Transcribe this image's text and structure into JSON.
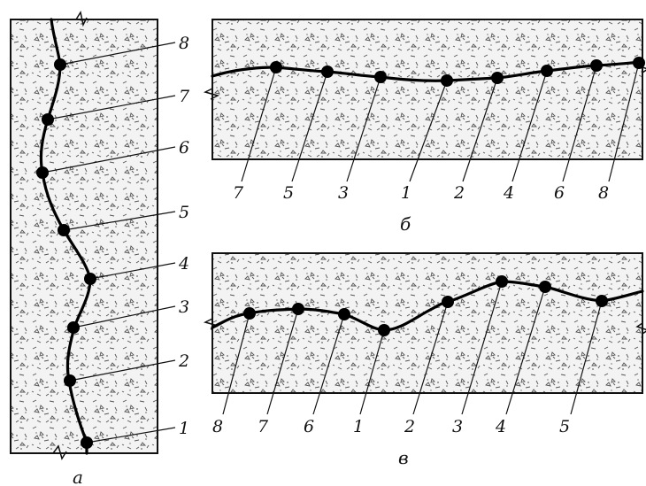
{
  "panels": [
    {
      "caption": "а",
      "points": [
        "1",
        "2",
        "3",
        "4",
        "5",
        "6",
        "7",
        "8"
      ]
    },
    {
      "caption": "б",
      "points": [
        "7",
        "5",
        "3",
        "1",
        "2",
        "4",
        "6",
        "8"
      ]
    },
    {
      "caption": "в",
      "points": [
        "8",
        "7",
        "6",
        "1",
        "2",
        "3",
        "4",
        "5"
      ]
    }
  ]
}
